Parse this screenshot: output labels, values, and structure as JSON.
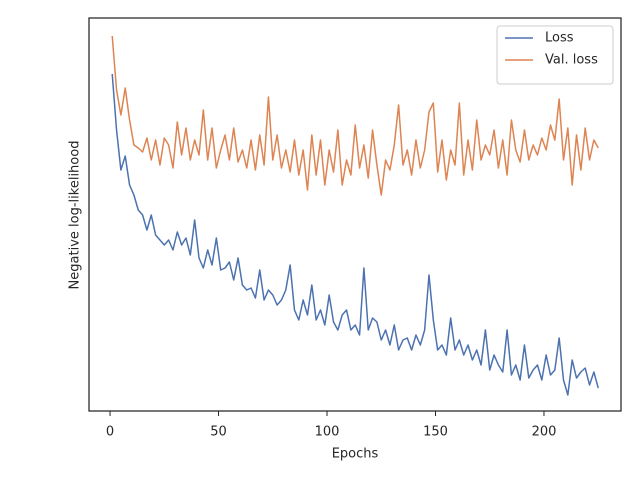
{
  "chart_data": {
    "type": "line",
    "xlabel": "Epochs",
    "ylabel": "Negative log-likelihood",
    "x": [
      1,
      3,
      5,
      7,
      9,
      11,
      13,
      15,
      17,
      19,
      21,
      23,
      25,
      27,
      29,
      31,
      33,
      35,
      37,
      39,
      41,
      43,
      45,
      47,
      49,
      51,
      53,
      55,
      57,
      59,
      61,
      63,
      65,
      67,
      69,
      71,
      73,
      75,
      77,
      79,
      81,
      83,
      85,
      87,
      89,
      91,
      93,
      95,
      97,
      99,
      101,
      103,
      105,
      107,
      109,
      111,
      113,
      115,
      117,
      119,
      121,
      123,
      125,
      127,
      129,
      131,
      133,
      135,
      137,
      139,
      141,
      143,
      145,
      147,
      149,
      151,
      153,
      155,
      157,
      159,
      161,
      163,
      165,
      167,
      169,
      171,
      173,
      175,
      177,
      179,
      181,
      183,
      185,
      187,
      189,
      191,
      193,
      195,
      197,
      199,
      201,
      203,
      205,
      207,
      209,
      211,
      213,
      215,
      217,
      219,
      221,
      223,
      225
    ],
    "series": [
      {
        "name": "Loss",
        "color": "#4c72b0",
        "values": [
          337,
          281,
          241,
          255,
          226,
          216,
          201,
          196,
          181,
          196,
          176,
          171,
          166,
          171,
          161,
          179,
          166,
          173,
          156,
          191,
          153,
          143,
          161,
          146,
          173,
          141,
          143,
          149,
          131,
          153,
          126,
          121,
          123,
          113,
          141,
          111,
          121,
          116,
          106,
          111,
          121,
          146,
          101,
          91,
          111,
          96,
          126,
          91,
          101,
          86,
          116,
          89,
          81,
          96,
          101,
          81,
          86,
          76,
          143,
          81,
          93,
          89,
          71,
          81,
          66,
          86,
          61,
          71,
          73,
          61,
          76,
          66,
          81,
          136,
          91,
          61,
          66,
          56,
          93,
          61,
          71,
          56,
          66,
          51,
          61,
          46,
          81,
          41,
          56,
          46,
          39,
          81,
          36,
          46,
          31,
          66,
          33,
          41,
          46,
          31,
          56,
          36,
          41,
          73,
          31,
          16,
          51,
          33,
          39,
          43,
          26,
          39,
          23
        ]
      },
      {
        "name": "Val. loss",
        "color": "#dd8452",
        "values": [
          375,
          321,
          296,
          323,
          291,
          266,
          263,
          259,
          273,
          251,
          271,
          246,
          273,
          266,
          243,
          289,
          256,
          283,
          251,
          271,
          256,
          301,
          251,
          283,
          243,
          261,
          276,
          251,
          283,
          249,
          261,
          243,
          271,
          241,
          276,
          246,
          314,
          251,
          276,
          243,
          261,
          239,
          271,
          236,
          261,
          221,
          276,
          236,
          271,
          226,
          261,
          239,
          281,
          226,
          251,
          236,
          286,
          243,
          266,
          233,
          281,
          246,
          216,
          251,
          241,
          266,
          306,
          246,
          261,
          236,
          271,
          243,
          261,
          299,
          308,
          239,
          271,
          231,
          261,
          246,
          308,
          236,
          271,
          241,
          291,
          251,
          266,
          256,
          281,
          243,
          271,
          236,
          291,
          261,
          249,
          281,
          251,
          266,
          256,
          273,
          261,
          286,
          271,
          312,
          251,
          283,
          226,
          276,
          241,
          283,
          251,
          271,
          263
        ]
      }
    ],
    "xlim": [
      -9.7,
      235.5
    ],
    "xticks": [
      0,
      50,
      100,
      150,
      200
    ],
    "ylim": [
      0,
      393
    ],
    "legend": "upper right"
  }
}
